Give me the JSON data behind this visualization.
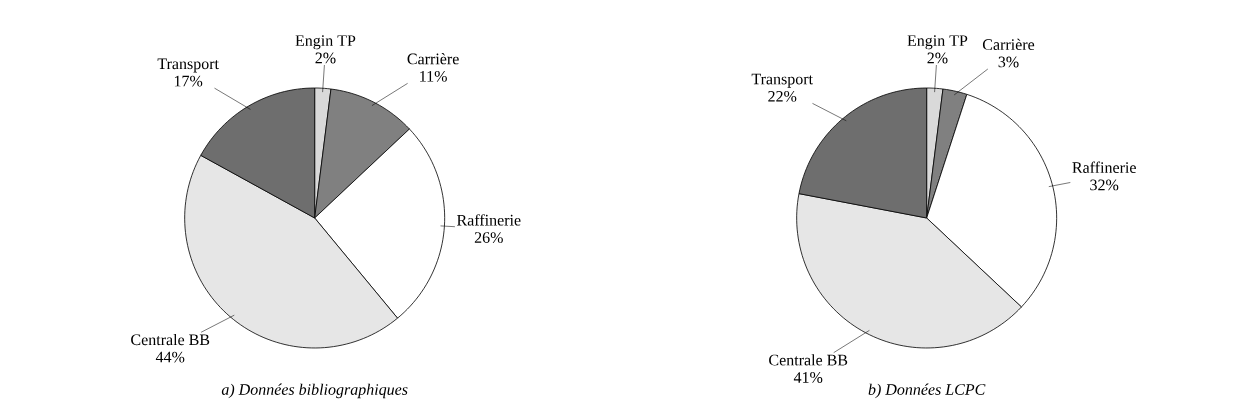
{
  "chart_data": [
    {
      "type": "pie",
      "title": "a) Données bibliographiques",
      "categories": [
        "Engin TP",
        "Carrière",
        "Raffinerie",
        "Centrale BB",
        "Transport"
      ],
      "values": [
        2,
        11,
        26,
        44,
        17
      ],
      "value_labels": [
        "2%",
        "11%",
        "26%",
        "44%",
        "17%"
      ],
      "colors": [
        "#d9d9d9",
        "#808080",
        "#ffffff",
        "#e6e6e6",
        "#6e6e6e"
      ]
    },
    {
      "type": "pie",
      "title": "b) Données LCPC",
      "categories": [
        "Engin TP",
        "Carrière",
        "Raffinerie",
        "Centrale BB",
        "Transport"
      ],
      "values": [
        2,
        3,
        32,
        41,
        22
      ],
      "value_labels": [
        "2%",
        "3%",
        "32%",
        "41%",
        "22%"
      ],
      "colors": [
        "#d9d9d9",
        "#808080",
        "#ffffff",
        "#e6e6e6",
        "#6e6e6e"
      ]
    }
  ]
}
